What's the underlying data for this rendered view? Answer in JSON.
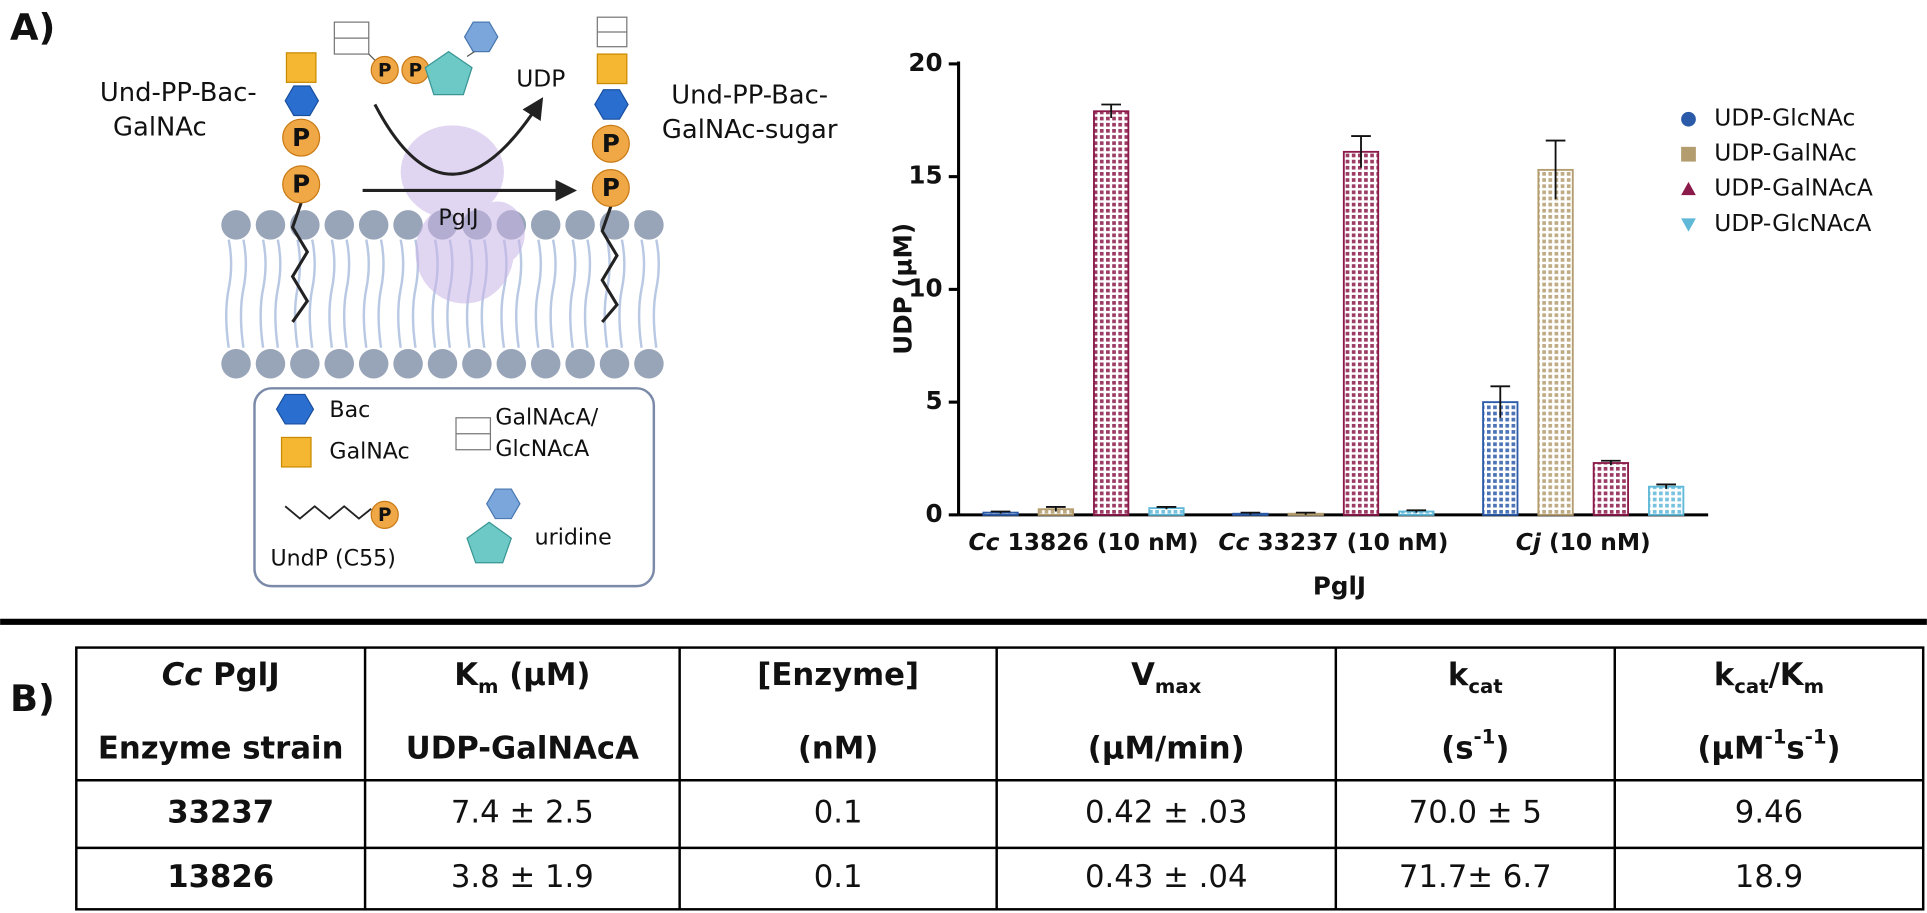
{
  "panel_a": {
    "label": "A)",
    "diagram": {
      "substrate_lines": [
        "Und-PP-Bac-",
        "GalNAc"
      ],
      "product_lines": [
        "Und-PP-Bac-",
        "GalNAc-sugar"
      ],
      "udp": "UDP",
      "enzyme": "PglJ",
      "phosphate": "P",
      "key": {
        "bac": "Bac",
        "galnac": "GalNAc",
        "uronic_lines": [
          "GalNAcA/",
          "GlcNAcA"
        ],
        "undp": "UndP (C55)",
        "uridine": "uridine"
      }
    }
  },
  "chart_data": {
    "type": "bar",
    "categories": [
      "Cc 13826 (10 nM)",
      "Cc 33237 (10 nM)",
      "Cj (10 nM)"
    ],
    "italic_first_word": true,
    "x_label": "PglJ",
    "y_label": "UDP (µM)",
    "ylim": [
      0,
      20
    ],
    "yticks": [
      0,
      5,
      10,
      15,
      20
    ],
    "legend": "right",
    "series": [
      {
        "name": "UDP-GlcNAc",
        "color": "#2b5ba8",
        "marker": "circle",
        "values": [
          0.1,
          0.05,
          5.0
        ],
        "errors": [
          0.05,
          0.05,
          0.7
        ]
      },
      {
        "name": "UDP-GalNAc",
        "color": "#b39c6e",
        "marker": "square",
        "values": [
          0.25,
          0.05,
          15.3
        ],
        "errors": [
          0.1,
          0.05,
          1.3
        ]
      },
      {
        "name": "UDP-GalNAcA",
        "color": "#8b1a4a",
        "marker": "triangle",
        "values": [
          17.9,
          16.1,
          2.3
        ],
        "errors": [
          0.3,
          0.7,
          0.1
        ]
      },
      {
        "name": "UDP-GlcNAcA",
        "color": "#5fb8d8",
        "marker": "triangle-down",
        "values": [
          0.3,
          0.15,
          1.25
        ],
        "errors": [
          0.05,
          0.05,
          0.1
        ]
      }
    ]
  },
  "panel_b": {
    "label": "B)",
    "table": {
      "bold_first_column": true,
      "header": [
        [
          [
            {
              "text": "Cc",
              "style": "italic"
            },
            {
              "text": " PglJ"
            }
          ],
          [
            {
              "text": "K"
            },
            {
              "text": "m",
              "style": "sub"
            },
            {
              "text": " (µM)"
            }
          ],
          [
            {
              "text": "[Enzyme]"
            }
          ],
          [
            {
              "text": "V"
            },
            {
              "text": "max",
              "style": "sub"
            }
          ],
          [
            {
              "text": "k"
            },
            {
              "text": "cat",
              "style": "sub"
            }
          ],
          [
            {
              "text": "k"
            },
            {
              "text": "cat",
              "style": "sub"
            },
            {
              "text": "/K"
            },
            {
              "text": "m",
              "style": "sub"
            }
          ]
        ],
        [
          [
            {
              "text": "Enzyme strain"
            }
          ],
          [
            {
              "text": "UDP-GalNAcA"
            }
          ],
          [
            {
              "text": "(nM)"
            }
          ],
          [
            {
              "text": "(µM/min)"
            }
          ],
          [
            {
              "text": "(s"
            },
            {
              "text": "-1",
              "style": "sup"
            },
            {
              "text": ")"
            }
          ],
          [
            {
              "text": "(µM"
            },
            {
              "text": "-1",
              "style": "sup"
            },
            {
              "text": "s"
            },
            {
              "text": "-1",
              "style": "sup"
            },
            {
              "text": ")"
            }
          ]
        ]
      ],
      "rows": [
        [
          "33237",
          "7.4 ± 2.5",
          "0.1",
          "0.42 ± .03",
          "70.0 ± 5",
          "9.46"
        ],
        [
          "13826",
          "3.8 ± 1.9",
          "0.1",
          "0.43 ± .04",
          "71.7± 6.7",
          "18.9"
        ]
      ]
    }
  }
}
